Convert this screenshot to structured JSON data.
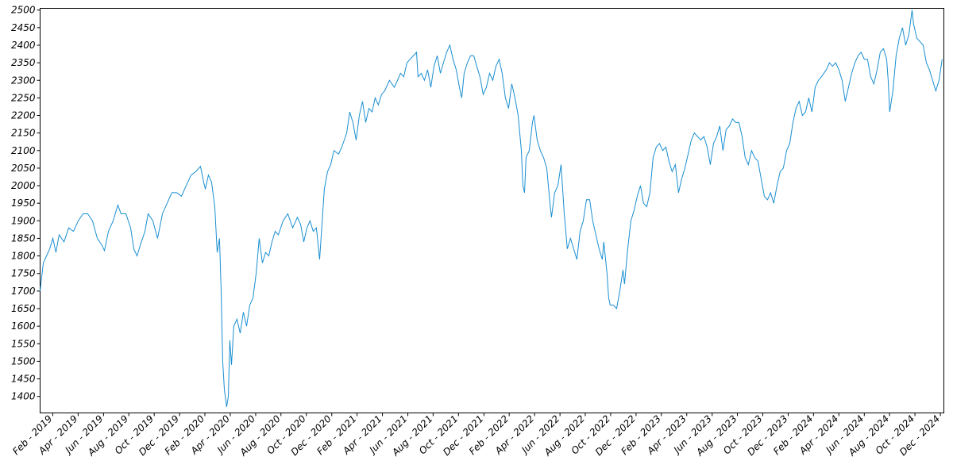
{
  "chart_data": {
    "type": "line",
    "color": "#1a8fd1",
    "x": [
      2019.0,
      2019.021,
      2019.042,
      2019.063,
      2019.084,
      2019.104,
      2019.125,
      2019.157,
      2019.188,
      2019.219,
      2019.251,
      2019.282,
      2019.313,
      2019.344,
      2019.376,
      2019.407,
      2019.423,
      2019.449,
      2019.48,
      2019.511,
      2019.532,
      2019.564,
      2019.595,
      2019.616,
      2019.637,
      2019.658,
      2019.689,
      2019.71,
      2019.741,
      2019.772,
      2019.804,
      2019.835,
      2019.866,
      2019.898,
      2019.929,
      2019.96,
      2019.992,
      2020.023,
      2020.054,
      2020.075,
      2020.086,
      2020.106,
      2020.127,
      2020.148,
      2020.164,
      2020.179,
      2020.19,
      2020.2,
      2020.211,
      2020.226,
      2020.237,
      2020.247,
      2020.258,
      2020.273,
      2020.294,
      2020.315,
      2020.336,
      2020.357,
      2020.378,
      2020.399,
      2020.42,
      2020.44,
      2020.461,
      2020.482,
      2020.503,
      2020.524,
      2020.545,
      2020.566,
      2020.597,
      2020.628,
      2020.66,
      2020.691,
      2020.712,
      2020.733,
      2020.754,
      2020.774,
      2020.795,
      2020.816,
      2020.837,
      2020.848,
      2020.868,
      2020.889,
      2020.91,
      2020.931,
      2020.962,
      2020.983,
      2021.015,
      2021.035,
      2021.056,
      2021.077,
      2021.098,
      2021.119,
      2021.14,
      2021.161,
      2021.182,
      2021.202,
      2021.223,
      2021.244,
      2021.265,
      2021.296,
      2021.328,
      2021.349,
      2021.369,
      2021.39,
      2021.411,
      2021.432,
      2021.453,
      2021.474,
      2021.484,
      2021.505,
      2021.526,
      2021.547,
      2021.568,
      2021.589,
      2021.61,
      2021.631,
      2021.651,
      2021.672,
      2021.693,
      2021.714,
      2021.735,
      2021.756,
      2021.771,
      2021.787,
      2021.808,
      2021.829,
      2021.85,
      2021.87,
      2021.891,
      2021.912,
      2021.933,
      2021.954,
      2021.975,
      2021.996,
      2022.017,
      2022.037,
      2022.058,
      2022.079,
      2022.1,
      2022.121,
      2022.142,
      2022.163,
      2022.173,
      2022.184,
      2022.194,
      2022.215,
      2022.236,
      2022.246,
      2022.267,
      2022.288,
      2022.309,
      2022.33,
      2022.351,
      2022.361,
      2022.382,
      2022.403,
      2022.424,
      2022.445,
      2022.455,
      2022.465,
      2022.486,
      2022.507,
      2022.528,
      2022.549,
      2022.57,
      2022.591,
      2022.612,
      2022.632,
      2022.653,
      2022.674,
      2022.695,
      2022.705,
      2022.726,
      2022.737,
      2022.747,
      2022.768,
      2022.789,
      2022.81,
      2022.831,
      2022.841,
      2022.862,
      2022.883,
      2022.904,
      2022.925,
      2022.946,
      2022.966,
      2022.987,
      2023.008,
      2023.029,
      2023.05,
      2023.071,
      2023.092,
      2023.113,
      2023.133,
      2023.154,
      2023.175,
      2023.196,
      2023.217,
      2023.238,
      2023.259,
      2023.28,
      2023.3,
      2023.321,
      2023.342,
      2023.363,
      2023.384,
      2023.405,
      2023.426,
      2023.447,
      2023.467,
      2023.488,
      2023.509,
      2023.53,
      2023.551,
      2023.572,
      2023.593,
      2023.614,
      2023.634,
      2023.655,
      2023.676,
      2023.697,
      2023.718,
      2023.739,
      2023.76,
      2023.781,
      2023.801,
      2023.822,
      2023.843,
      2023.864,
      2023.885,
      2023.906,
      2023.927,
      2023.948,
      2023.968,
      2023.989,
      2024.01,
      2024.031,
      2024.052,
      2024.073,
      2024.094,
      2024.115,
      2024.135,
      2024.167,
      2024.188,
      2024.208,
      2024.229,
      2024.25,
      2024.271,
      2024.292,
      2024.313,
      2024.334,
      2024.355,
      2024.376,
      2024.396,
      2024.417,
      2024.438,
      2024.459,
      2024.48,
      2024.501,
      2024.522,
      2024.543,
      2024.564,
      2024.574,
      2024.584,
      2024.605,
      2024.626,
      2024.647,
      2024.668,
      2024.689,
      2024.71,
      2024.731,
      2024.741,
      2024.762,
      2024.783,
      2024.804,
      2024.825,
      2024.845,
      2024.866,
      2024.887,
      2024.908,
      2024.929
    ],
    "values": [
      1700,
      1780,
      1800,
      1820,
      1850,
      1810,
      1860,
      1840,
      1880,
      1870,
      1900,
      1920,
      1920,
      1900,
      1850,
      1830,
      1815,
      1870,
      1900,
      1945,
      1920,
      1920,
      1880,
      1820,
      1800,
      1830,
      1870,
      1920,
      1900,
      1850,
      1920,
      1950,
      1980,
      1980,
      1970,
      2000,
      2030,
      2040,
      2055,
      2010,
      1990,
      2030,
      2010,
      1940,
      1810,
      1850,
      1700,
      1500,
      1420,
      1370,
      1400,
      1560,
      1490,
      1600,
      1620,
      1580,
      1640,
      1600,
      1660,
      1680,
      1750,
      1850,
      1780,
      1810,
      1800,
      1840,
      1870,
      1860,
      1900,
      1920,
      1880,
      1910,
      1890,
      1840,
      1880,
      1900,
      1870,
      1880,
      1790,
      1860,
      1990,
      2040,
      2060,
      2100,
      2090,
      2110,
      2150,
      2210,
      2180,
      2130,
      2200,
      2240,
      2180,
      2220,
      2210,
      2250,
      2230,
      2260,
      2270,
      2300,
      2280,
      2300,
      2320,
      2310,
      2350,
      2360,
      2370,
      2380,
      2310,
      2320,
      2300,
      2330,
      2280,
      2340,
      2370,
      2320,
      2350,
      2380,
      2400,
      2360,
      2330,
      2280,
      2250,
      2320,
      2350,
      2370,
      2370,
      2340,
      2310,
      2260,
      2280,
      2320,
      2300,
      2340,
      2360,
      2320,
      2250,
      2220,
      2290,
      2250,
      2200,
      2100,
      2000,
      1980,
      2080,
      2100,
      2180,
      2200,
      2130,
      2100,
      2080,
      2050,
      1950,
      1910,
      1980,
      2000,
      2060,
      1920,
      1870,
      1820,
      1850,
      1820,
      1790,
      1870,
      1900,
      1960,
      1960,
      1900,
      1860,
      1820,
      1790,
      1840,
      1750,
      1680,
      1660,
      1660,
      1650,
      1700,
      1760,
      1720,
      1820,
      1900,
      1930,
      1970,
      2000,
      1950,
      1940,
      1980,
      2080,
      2110,
      2120,
      2100,
      2110,
      2070,
      2040,
      2060,
      1980,
      2020,
      2050,
      2090,
      2130,
      2150,
      2140,
      2130,
      2140,
      2110,
      2060,
      2120,
      2140,
      2170,
      2100,
      2160,
      2170,
      2190,
      2180,
      2180,
      2140,
      2080,
      2060,
      2100,
      2080,
      2070,
      2020,
      1970,
      1960,
      1980,
      1950,
      2000,
      2040,
      2050,
      2100,
      2120,
      2180,
      2220,
      2240,
      2200,
      2210,
      2250,
      2210,
      2280,
      2300,
      2310,
      2330,
      2350,
      2340,
      2350,
      2330,
      2300,
      2240,
      2280,
      2320,
      2350,
      2370,
      2380,
      2360,
      2360,
      2310,
      2290,
      2330,
      2380,
      2390,
      2360,
      2300,
      2210,
      2270,
      2370,
      2420,
      2450,
      2400,
      2430,
      2500,
      2460,
      2420,
      2410,
      2400,
      2350,
      2330,
      2300,
      2270,
      2300,
      2360
    ],
    "xlim": [
      2019.0,
      2024.94
    ],
    "ylim": [
      1353,
      2505
    ],
    "yticks": [
      1400,
      1450,
      1500,
      1550,
      1600,
      1650,
      1700,
      1750,
      1800,
      1850,
      1900,
      1950,
      2000,
      2050,
      2100,
      2150,
      2200,
      2250,
      2300,
      2350,
      2400,
      2450,
      2500
    ],
    "xticks": [
      {
        "value": 2019.083,
        "label": "Feb - 2019"
      },
      {
        "value": 2019.25,
        "label": "Apr - 2019"
      },
      {
        "value": 2019.417,
        "label": "Jun - 2019"
      },
      {
        "value": 2019.583,
        "label": "Aug - 2019"
      },
      {
        "value": 2019.75,
        "label": "Oct - 2019"
      },
      {
        "value": 2019.917,
        "label": "Dec - 2019"
      },
      {
        "value": 2020.083,
        "label": "Feb - 2020"
      },
      {
        "value": 2020.25,
        "label": "Apr - 2020"
      },
      {
        "value": 2020.417,
        "label": "Jun - 2020"
      },
      {
        "value": 2020.583,
        "label": "Aug - 2020"
      },
      {
        "value": 2020.75,
        "label": "Oct - 2020"
      },
      {
        "value": 2020.917,
        "label": "Dec - 2020"
      },
      {
        "value": 2021.083,
        "label": "Feb - 2021"
      },
      {
        "value": 2021.25,
        "label": "Apr - 2021"
      },
      {
        "value": 2021.417,
        "label": "Jun - 2021"
      },
      {
        "value": 2021.583,
        "label": "Aug - 2021"
      },
      {
        "value": 2021.75,
        "label": "Oct - 2021"
      },
      {
        "value": 2021.917,
        "label": "Dec - 2021"
      },
      {
        "value": 2022.083,
        "label": "Feb - 2022"
      },
      {
        "value": 2022.25,
        "label": "Apr - 2022"
      },
      {
        "value": 2022.417,
        "label": "Jun - 2022"
      },
      {
        "value": 2022.583,
        "label": "Aug - 2022"
      },
      {
        "value": 2022.75,
        "label": "Oct - 2022"
      },
      {
        "value": 2022.917,
        "label": "Dec - 2022"
      },
      {
        "value": 2023.083,
        "label": "Feb - 2023"
      },
      {
        "value": 2023.25,
        "label": "Apr - 2023"
      },
      {
        "value": 2023.417,
        "label": "Jun - 2023"
      },
      {
        "value": 2023.583,
        "label": "Aug - 2023"
      },
      {
        "value": 2023.75,
        "label": "Oct - 2023"
      },
      {
        "value": 2023.917,
        "label": "Dec - 2023"
      },
      {
        "value": 2024.083,
        "label": "Feb - 2024"
      },
      {
        "value": 2024.25,
        "label": "Apr - 2024"
      },
      {
        "value": 2024.417,
        "label": "Jun - 2024"
      },
      {
        "value": 2024.583,
        "label": "Aug - 2024"
      },
      {
        "value": 2024.75,
        "label": "Oct - 2024"
      },
      {
        "value": 2024.917,
        "label": "Dec - 2024"
      }
    ]
  }
}
